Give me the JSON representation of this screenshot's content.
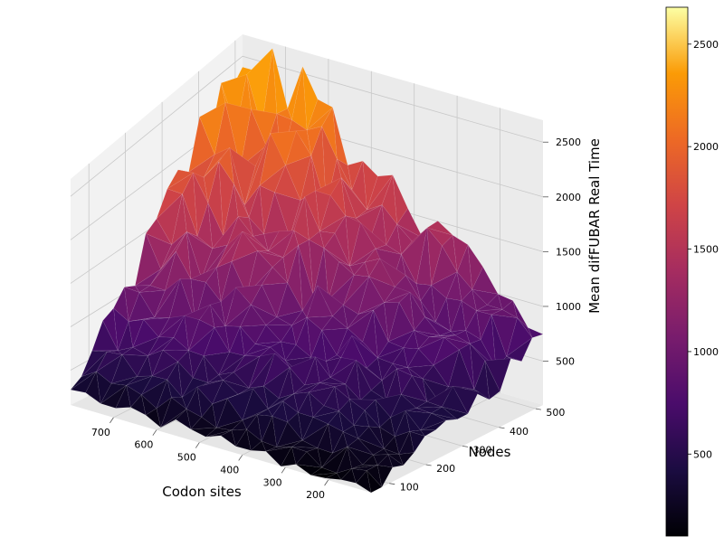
{
  "chart_data": {
    "type": "surface3d",
    "title": "",
    "xlabel": "Codon sites",
    "ylabel": "Nodes",
    "zlabel": "Mean difFUBAR Real Time",
    "x_ticks": [
      700,
      600,
      500,
      400,
      300,
      200
    ],
    "y_ticks": [
      100,
      200,
      300,
      400,
      500
    ],
    "z_ticks": [
      500,
      1000,
      1500,
      2000,
      2500
    ],
    "xlim": [
      100,
      800
    ],
    "ylim": [
      50,
      520
    ],
    "zlim": [
      100,
      2700
    ],
    "colormap": "inferno",
    "colorbar": {
      "ticks": [
        500,
        1000,
        1500,
        2000,
        2500
      ],
      "range": [
        100,
        2680
      ]
    },
    "surface_summary": {
      "peak": {
        "codon_sites": 700,
        "nodes": 500,
        "time": 2650
      },
      "low_corner": {
        "codon_sites": 100,
        "nodes": 50,
        "time": 100
      },
      "high_sites_low_nodes": {
        "codon_sites": 750,
        "nodes": 50,
        "time": 250
      },
      "low_sites_high_nodes": {
        "codon_sites": 100,
        "nodes": 500,
        "time": 700
      }
    }
  }
}
